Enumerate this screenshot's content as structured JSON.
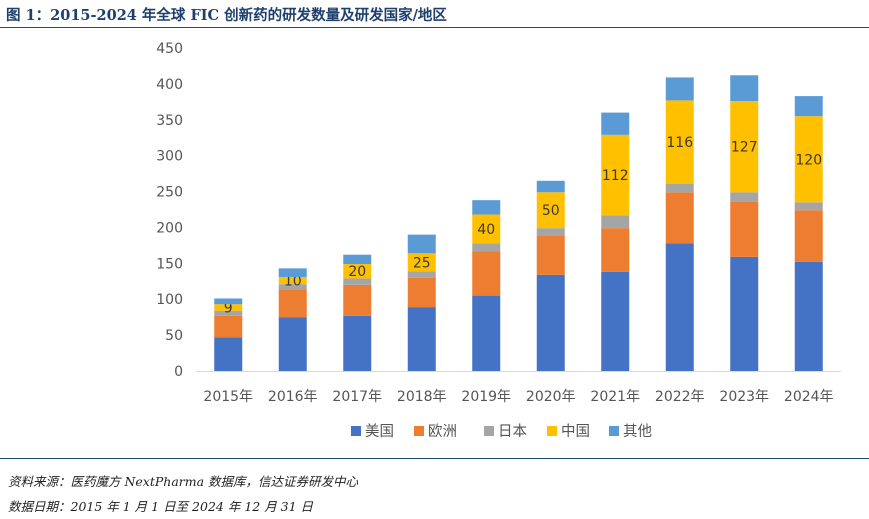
{
  "header": {
    "title": "图 1：2015-2024 年全球 FIC 创新药的研发数量及研发国家/地区"
  },
  "footer": {
    "source": "资料来源：医药魔方 NextPharma 数据库，信达证券研发中心",
    "date_range": "数据日期：2015 年 1 月 1 日至 2024 年 12 月 31 日"
  },
  "chart_data": {
    "type": "bar",
    "stacked": true,
    "categories": [
      "2015年",
      "2016年",
      "2017年",
      "2018年",
      "2019年",
      "2020年",
      "2021年",
      "2022年",
      "2023年",
      "2024年"
    ],
    "series": [
      {
        "name": "美国",
        "color": "#4472C4",
        "values": [
          47,
          75,
          77,
          89,
          105,
          134,
          138,
          178,
          159,
          152
        ]
      },
      {
        "name": "欧洲",
        "color": "#ED7D31",
        "values": [
          30,
          39,
          43,
          41,
          62,
          55,
          61,
          71,
          77,
          72
        ]
      },
      {
        "name": "日本",
        "color": "#A5A5A5",
        "values": [
          7,
          7,
          9,
          9,
          11,
          10,
          18,
          12,
          13,
          11
        ]
      },
      {
        "name": "中国",
        "color": "#FFC000",
        "values": [
          9,
          10,
          20,
          25,
          40,
          50,
          112,
          116,
          127,
          120
        ]
      },
      {
        "name": "其他",
        "color": "#5B9BD5",
        "values": [
          8,
          12,
          13,
          26,
          20,
          16,
          31,
          32,
          36,
          28
        ]
      }
    ],
    "labeled_series": "中国",
    "ylim": [
      0,
      450
    ],
    "yticks": [
      0,
      50,
      100,
      150,
      200,
      250,
      300,
      350,
      400,
      450
    ],
    "grid": false,
    "legend_position": "bottom"
  }
}
